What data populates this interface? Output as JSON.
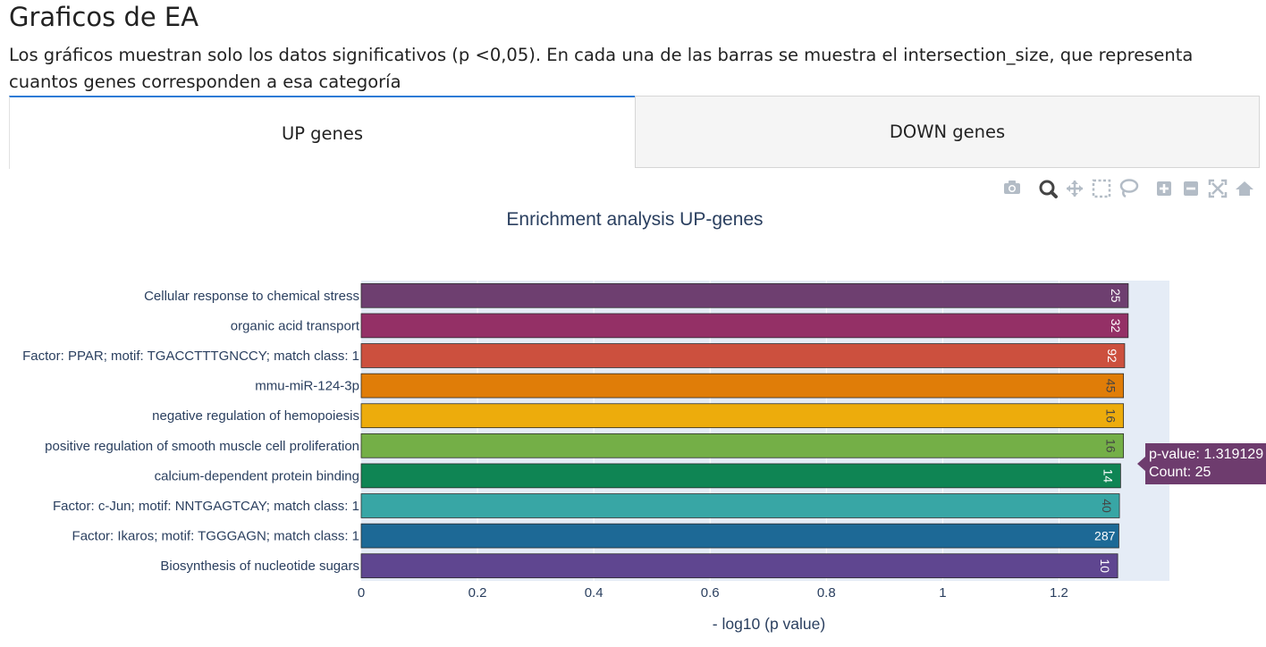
{
  "page": {
    "title": "Graficos de EA",
    "description": "Los gráficos muestran solo los datos significativos (p <0,05). En cada una de las barras se muestra el intersection_size, que representa cuantos genes corresponden a esa categoría"
  },
  "tabs": [
    {
      "label": "UP genes",
      "active": true
    },
    {
      "label": "DOWN genes",
      "active": false
    }
  ],
  "modebar": {
    "icons": [
      "camera-icon",
      "zoom-icon",
      "pan-icon",
      "box-select-icon",
      "lasso-select-icon",
      "zoom-in-icon",
      "zoom-out-icon",
      "autoscale-icon",
      "reset-axes-icon"
    ],
    "active": "zoom-icon"
  },
  "tooltip": {
    "line1": "p-value: 1.319129",
    "line2": "Count: 25",
    "color": "#6e3c6e"
  },
  "chart_data": {
    "type": "bar",
    "orientation": "horizontal",
    "title": "Enrichment analysis UP-genes",
    "xlabel": "- log10 (p value)",
    "ylabel": "",
    "xlim": [
      0,
      1.39
    ],
    "xticks": [
      0,
      0.2,
      0.4,
      0.6,
      0.8,
      1,
      1.2
    ],
    "xtick_labels": [
      "0",
      "0.2",
      "0.4",
      "0.6",
      "0.8",
      "1",
      "1.2"
    ],
    "grid": true,
    "plot_background": "#e5ecf6",
    "categories": [
      "Cellular response to chemical stress",
      "organic acid transport",
      "Factor: PPAR; motif: TGACCTTTGNCCY; match class: 1",
      "mmu-miR-124-3p",
      "negative regulation of hemopoiesis",
      "positive regulation of smooth muscle cell proliferation",
      "calcium-dependent protein binding",
      "Factor: c-Jun; motif: NNTGAGTCAY; match class: 1",
      "Factor: Ikaros; motif: TGGGAGN; match class: 1",
      "Biosynthesis of nucleotide sugars"
    ],
    "values": [
      1.319129,
      1.319,
      1.313,
      1.311,
      1.311,
      1.311,
      1.306,
      1.304,
      1.303,
      1.301
    ],
    "data_labels": [
      "25",
      "32",
      "92",
      "45",
      "16",
      "16",
      "14",
      "40",
      "287",
      "10"
    ],
    "colors": [
      "#6e3f70",
      "#943066",
      "#cc503e",
      "#e07d08",
      "#edac0c",
      "#74af47",
      "#0f8554",
      "#38a6a5",
      "#1d6996",
      "#5f4690"
    ],
    "label_colors": [
      "#ffffff",
      "#ffffff",
      "#ffffff",
      "#444444",
      "#444444",
      "#444444",
      "#ffffff",
      "#444444",
      "#ffffff",
      "#ffffff"
    ]
  }
}
